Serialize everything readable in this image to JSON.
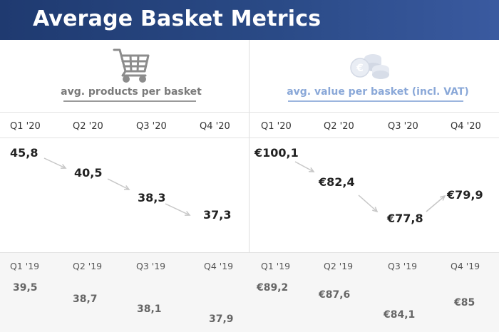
{
  "header": {
    "title": "Average Basket Metrics"
  },
  "colors": {
    "header_bg": "#2a4a86",
    "arrow": "#c7c7c7",
    "left_title": "#7a7a7a",
    "right_title": "#8aa8d8"
  },
  "left": {
    "title": "avg. products per basket",
    "icon": "shopping-cart-icon"
  },
  "right": {
    "title": "avg. value per basket (incl. VAT)",
    "icon": "coins-icon"
  },
  "chart_data": [
    {
      "type": "table",
      "title": "avg. products per basket",
      "categories_2020": [
        "Q1 '20",
        "Q2 '20",
        "Q3 '20",
        "Q4 '20"
      ],
      "values_2020": [
        45.8,
        40.5,
        38.3,
        37.3
      ],
      "labels_2020": [
        "45,8",
        "40,5",
        "38,3",
        "37,3"
      ],
      "categories_2019": [
        "Q1 '19",
        "Q2 '19",
        "Q3 '19",
        "Q4 '19"
      ],
      "values_2019": [
        39.5,
        38.7,
        38.1,
        37.9
      ],
      "labels_2019": [
        "39,5",
        "38,7",
        "38,1",
        "37,9"
      ]
    },
    {
      "type": "table",
      "title": "avg. value per basket (incl. VAT)",
      "categories_2020": [
        "Q1 '20",
        "Q2 '20",
        "Q3 '20",
        "Q4 '20"
      ],
      "values_2020": [
        100.1,
        82.4,
        77.8,
        79.9
      ],
      "labels_2020": [
        "€100,1",
        "€82,4",
        "€77,8",
        "€79,9"
      ],
      "categories_2019": [
        "Q1 '19",
        "Q2 '19",
        "Q3 '19",
        "Q4 '19"
      ],
      "values_2019": [
        89.2,
        87.6,
        84.1,
        85.0
      ],
      "labels_2019": [
        "€89,2",
        "€87,6",
        "€84,1",
        "€85"
      ]
    }
  ]
}
